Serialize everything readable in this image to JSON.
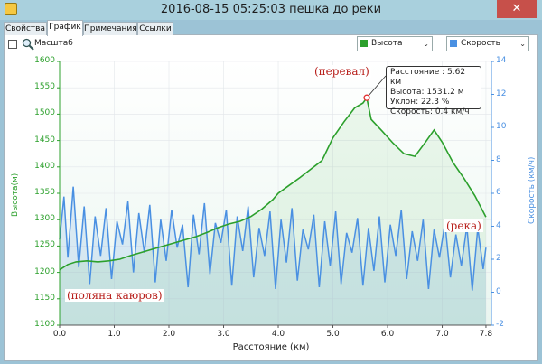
{
  "window": {
    "title": "2016-08-15 05:25:03 пешка до реки",
    "close_glyph": "✕"
  },
  "tabs": [
    {
      "label": "Свойства",
      "active": false
    },
    {
      "label": "График",
      "active": true
    },
    {
      "label": "Примечания",
      "active": false
    },
    {
      "label": "Ссылки",
      "active": false
    }
  ],
  "toolbar": {
    "scale_label": "Масштаб",
    "height_dropdown": {
      "label": "Высота",
      "color": "#2ca02c"
    },
    "speed_dropdown": {
      "label": "Скорость",
      "color": "#4a90e2"
    }
  },
  "tooltip": {
    "lines": [
      "Расстояние  : 5.62 км",
      "Высота: 1531.2 м",
      "Уклон: 22.3 %",
      "Скорость: 0.4 км/ч"
    ]
  },
  "annotations": {
    "pass": "(перевал)",
    "river": "(река)",
    "meadow": "(поляна каюров)"
  },
  "chart_data": {
    "type": "line",
    "xlabel": "Расстояние  (км)",
    "ylabel_left": "Высота(м)",
    "ylabel_right": "Скорость (км/ч)",
    "x_ticks": [
      "0.0",
      "1.0",
      "2.0",
      "3.0",
      "4.0",
      "5.0",
      "6.0",
      "7.0",
      "7.8"
    ],
    "y_left_ticks": [
      "1600",
      "1550",
      "1500",
      "1450",
      "1400",
      "1350",
      "1300",
      "1250",
      "1200",
      "1150",
      "1100"
    ],
    "y_right_ticks": [
      "14",
      "12",
      "10",
      "8",
      "6",
      "4",
      "2",
      "0",
      "-2"
    ],
    "xlim": [
      0,
      7.9
    ],
    "ylim_left": [
      1100,
      1600
    ],
    "ylim_right": [
      -2,
      14
    ],
    "series": [
      {
        "name": "Высота",
        "axis": "left",
        "color": "#2ca02c",
        "x": [
          0,
          0.15,
          0.3,
          0.5,
          0.7,
          0.9,
          1.1,
          1.3,
          1.5,
          1.7,
          1.9,
          2.1,
          2.3,
          2.5,
          2.7,
          2.9,
          3.1,
          3.3,
          3.5,
          3.7,
          3.9,
          4.0,
          4.2,
          4.4,
          4.6,
          4.8,
          5.0,
          5.2,
          5.4,
          5.55,
          5.62,
          5.7,
          5.9,
          6.1,
          6.3,
          6.5,
          6.7,
          6.85,
          7.0,
          7.2,
          7.4,
          7.6,
          7.8
        ],
        "y": [
          1205,
          1215,
          1220,
          1222,
          1220,
          1222,
          1225,
          1232,
          1238,
          1244,
          1250,
          1256,
          1262,
          1268,
          1276,
          1285,
          1292,
          1297,
          1306,
          1320,
          1338,
          1350,
          1365,
          1380,
          1396,
          1412,
          1455,
          1485,
          1512,
          1521,
          1531,
          1490,
          1468,
          1445,
          1425,
          1420,
          1448,
          1470,
          1447,
          1408,
          1378,
          1345,
          1305
        ]
      },
      {
        "name": "Скорость",
        "axis": "right",
        "color": "#4a90e2",
        "x": [
          0,
          0.08,
          0.15,
          0.25,
          0.35,
          0.45,
          0.55,
          0.65,
          0.75,
          0.85,
          0.95,
          1.05,
          1.15,
          1.25,
          1.35,
          1.45,
          1.55,
          1.65,
          1.75,
          1.85,
          1.95,
          2.05,
          2.15,
          2.25,
          2.35,
          2.45,
          2.55,
          2.65,
          2.75,
          2.85,
          2.95,
          3.05,
          3.15,
          3.25,
          3.35,
          3.45,
          3.55,
          3.65,
          3.75,
          3.85,
          3.95,
          4.05,
          4.15,
          4.25,
          4.35,
          4.45,
          4.55,
          4.65,
          4.75,
          4.85,
          4.95,
          5.05,
          5.15,
          5.25,
          5.35,
          5.45,
          5.55,
          5.65,
          5.75,
          5.85,
          5.95,
          6.05,
          6.15,
          6.25,
          6.35,
          6.45,
          6.55,
          6.65,
          6.75,
          6.85,
          6.95,
          7.05,
          7.15,
          7.25,
          7.35,
          7.45,
          7.55,
          7.65,
          7.75,
          7.8
        ],
        "y": [
          3.2,
          5.8,
          2.1,
          6.4,
          1.5,
          5.2,
          0.5,
          4.6,
          2.2,
          5.1,
          0.8,
          4.3,
          2.9,
          5.5,
          1.2,
          4.8,
          2.4,
          5.3,
          0.6,
          4.4,
          1.9,
          5.0,
          2.7,
          4.1,
          0.3,
          4.7,
          2.3,
          5.4,
          1.1,
          4.2,
          3.0,
          5.0,
          0.4,
          4.6,
          2.5,
          5.2,
          0.9,
          3.9,
          2.2,
          4.9,
          0.2,
          4.4,
          1.8,
          5.1,
          0.7,
          3.8,
          2.6,
          4.7,
          0.3,
          4.3,
          1.6,
          4.9,
          0.5,
          3.6,
          2.4,
          4.5,
          0.4,
          3.9,
          1.3,
          4.6,
          0.6,
          4.1,
          2.2,
          5.0,
          0.8,
          3.7,
          1.9,
          4.4,
          0.2,
          3.8,
          2.1,
          4.2,
          0.9,
          3.5,
          1.6,
          4.0,
          0.1,
          3.9,
          1.4,
          2.7
        ]
      }
    ]
  }
}
